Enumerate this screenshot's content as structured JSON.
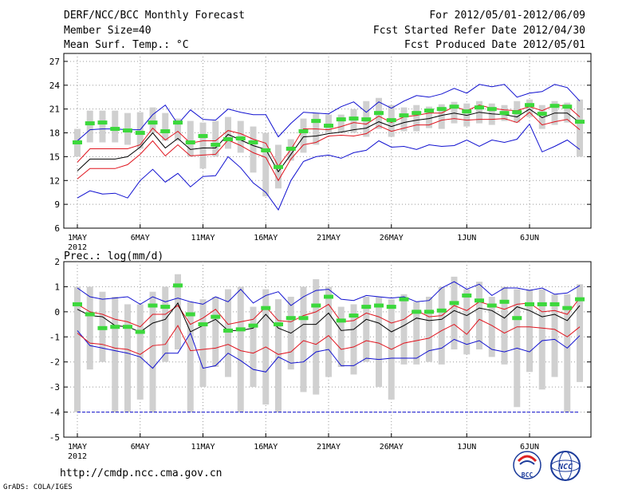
{
  "header": {
    "title": "DERF/NCC/BCC Monthly Forecast",
    "member_size": "Member Size=40",
    "variable": "Mean Surf. Temp.: °C",
    "period": "For 2012/05/01-2012/06/09",
    "start_date": "Fcst Started Refer Date 2012/04/30",
    "produced_date": "Fcst Produced Date 2012/05/01"
  },
  "footer": {
    "url": "http://cmdp.ncc.cma.gov.cn",
    "grads_credit": "GrADS: COLA/IGES",
    "logo_bcc": "BCC",
    "logo_ncc": "NCC"
  },
  "colors": {
    "box": "#d0d0d0",
    "ensemble_mean": "#000000",
    "spread": "#e0141e",
    "extreme": "#1010d0",
    "observed": "#3cd83c",
    "threshold": "#1010d0"
  },
  "chart_data": [
    {
      "id": "temperature",
      "type": "line",
      "ylabel": "Mean Surf. Temp.: °C",
      "ylim": [
        6,
        28
      ],
      "yticks": [
        6,
        9,
        12,
        15,
        18,
        21,
        24,
        27
      ],
      "xlim": [
        0,
        40
      ],
      "xtick_positions": [
        0,
        5,
        10,
        15,
        20,
        25,
        31,
        36
      ],
      "xtick_labels": [
        "1MAY",
        "6MAY",
        "11MAY",
        "16MAY",
        "21MAY",
        "26MAY",
        "1JUN",
        "6JUN"
      ],
      "xlabel_year": "2012",
      "grid": true,
      "series": [
        {
          "name": "max",
          "role": "extreme",
          "values": [
            9.8,
            10.7,
            10.3,
            10.4,
            9.8,
            12.0,
            13.4,
            11.8,
            12.9,
            11.2,
            12.5,
            12.6,
            15.0,
            13.6,
            11.7,
            10.5,
            8.3,
            12.0,
            14.4,
            15.0,
            15.2,
            14.8,
            15.5,
            15.8,
            17.0,
            16.2,
            16.3,
            15.9,
            16.5,
            16.3,
            16.4,
            17.1,
            16.3,
            17.1,
            16.8,
            17.2,
            19.1,
            15.6,
            16.3,
            17.1,
            15.9
          ]
        },
        {
          "name": "min",
          "role": "extreme",
          "values": [
            17.0,
            18.4,
            18.5,
            18.5,
            18.4,
            18.4,
            20.3,
            21.5,
            19.1,
            20.9,
            19.7,
            19.6,
            21.0,
            20.6,
            20.3,
            20.3,
            17.5,
            19.2,
            20.6,
            20.5,
            20.4,
            21.3,
            21.9,
            20.6,
            21.9,
            21.1,
            22.0,
            22.7,
            22.5,
            22.9,
            23.6,
            23.0,
            24.1,
            23.8,
            24.1,
            22.5,
            23.0,
            23.2,
            24.1,
            23.7,
            22.0
          ]
        },
        {
          "name": "upper",
          "role": "spread",
          "values": [
            14.3,
            16.0,
            16.0,
            16.0,
            16.0,
            16.5,
            18.6,
            17.1,
            18.2,
            16.7,
            17.0,
            17.0,
            18.3,
            17.9,
            17.2,
            16.7,
            13.8,
            15.9,
            18.5,
            18.5,
            18.4,
            18.8,
            19.3,
            19.1,
            20.1,
            19.3,
            20.0,
            20.2,
            20.5,
            20.5,
            21.3,
            20.8,
            21.5,
            21.1,
            20.9,
            20.8,
            21.3,
            20.8,
            21.5,
            21.4,
            20.0
          ]
        },
        {
          "name": "lower",
          "role": "spread",
          "values": [
            12.2,
            13.5,
            13.5,
            13.5,
            14.0,
            15.3,
            17.0,
            15.1,
            16.5,
            15.1,
            15.2,
            15.3,
            17.1,
            16.4,
            15.5,
            14.9,
            12.0,
            14.7,
            16.5,
            16.8,
            17.6,
            17.7,
            17.6,
            17.9,
            18.9,
            18.2,
            18.6,
            19.0,
            19.0,
            19.6,
            19.8,
            19.6,
            19.7,
            19.7,
            19.8,
            19.3,
            20.6,
            19.0,
            19.4,
            19.7,
            18.4
          ]
        },
        {
          "name": "ensemble mean",
          "role": "ensemble_mean",
          "values": [
            13.2,
            14.7,
            14.7,
            14.7,
            15.0,
            16.2,
            18.0,
            16.1,
            17.3,
            15.9,
            16.1,
            16.1,
            17.8,
            17.1,
            16.4,
            15.9,
            13.1,
            15.3,
            17.5,
            17.6,
            17.9,
            18.1,
            18.4,
            18.6,
            19.4,
            18.8,
            19.3,
            19.6,
            19.8,
            20.2,
            20.5,
            20.2,
            20.6,
            20.4,
            20.3,
            20.0,
            21.0,
            19.9,
            20.5,
            20.5,
            19.3
          ]
        },
        {
          "name": "obs",
          "role": "observed",
          "values": [
            16.8,
            19.2,
            19.3,
            18.5,
            18.3,
            18.0,
            19.3,
            18.2,
            19.3,
            16.8,
            17.6,
            16.5,
            17.2,
            17.3,
            16.8,
            15.8,
            13.7,
            16.0,
            18.2,
            19.5,
            18.9,
            19.7,
            19.8,
            19.7,
            20.5,
            19.6,
            20.2,
            20.5,
            20.8,
            21.0,
            21.3,
            20.7,
            21.2,
            21.0,
            20.5,
            20.6,
            21.5,
            20.4,
            21.4,
            21.3,
            19.4
          ]
        }
      ],
      "boxes_low": [
        15.0,
        16.8,
        16.8,
        16.8,
        16.5,
        16.0,
        18.0,
        17.0,
        17.0,
        15.0,
        13.5,
        15.0,
        16.0,
        15.5,
        13.0,
        10.0,
        11.0,
        14.5,
        15.5,
        16.5,
        18.0,
        18.0,
        18.0,
        17.5,
        18.5,
        17.5,
        18.2,
        18.2,
        18.6,
        18.5,
        19.2,
        18.8,
        19.2,
        19.0,
        19.5,
        19.3,
        20.0,
        18.5,
        19.0,
        19.3,
        15.0
      ],
      "boxes_high": [
        18.5,
        20.8,
        20.8,
        20.8,
        20.5,
        20.6,
        21.2,
        20.5,
        19.8,
        19.5,
        19.3,
        19.5,
        20.0,
        19.5,
        18.8,
        18.0,
        16.5,
        17.2,
        19.8,
        20.5,
        20.3,
        20.3,
        21.0,
        22.0,
        22.4,
        21.5,
        21.2,
        21.5,
        21.3,
        21.6,
        21.9,
        21.7,
        22.0,
        21.7,
        21.5,
        22.0,
        22.2,
        21.5,
        22.0,
        21.8,
        22.2
      ]
    },
    {
      "id": "precipitation",
      "type": "line",
      "ylabel": "Prec.: log(mm/d)",
      "ylim": [
        -5,
        2
      ],
      "yticks": [
        -5,
        -4,
        -3,
        -2,
        -1,
        0,
        1,
        2
      ],
      "xlim": [
        0,
        40
      ],
      "xtick_positions": [
        0,
        5,
        10,
        15,
        20,
        25,
        31,
        36
      ],
      "xtick_labels": [
        "1MAY",
        "6MAY",
        "11MAY",
        "16MAY",
        "21MAY",
        "26MAY",
        "1JUN",
        "6JUN"
      ],
      "xlabel_year": "2012",
      "grid": true,
      "threshold": -4.0,
      "series": [
        {
          "name": "max",
          "role": "extreme",
          "values": [
            0.95,
            0.6,
            0.5,
            0.55,
            0.6,
            0.3,
            0.6,
            0.4,
            0.55,
            0.4,
            0.3,
            0.6,
            0.4,
            0.9,
            0.35,
            0.65,
            0.8,
            0.25,
            0.6,
            0.85,
            0.9,
            0.5,
            0.45,
            0.65,
            0.6,
            0.55,
            0.6,
            0.4,
            0.45,
            0.95,
            1.2,
            0.9,
            1.1,
            0.65,
            0.95,
            0.95,
            0.85,
            0.95,
            0.7,
            0.75,
            1.05
          ]
        },
        {
          "name": "upper",
          "role": "spread",
          "values": [
            0.3,
            0.0,
            -0.1,
            -0.3,
            -0.4,
            -0.6,
            -0.1,
            -0.1,
            0.25,
            -0.5,
            -0.25,
            0.1,
            -0.5,
            -0.4,
            -0.3,
            0.2,
            -0.35,
            -0.4,
            -0.15,
            0.0,
            0.3,
            -0.4,
            -0.35,
            -0.05,
            -0.2,
            -0.45,
            -0.3,
            0.05,
            -0.2,
            -0.15,
            0.25,
            0.05,
            0.4,
            0.25,
            0.1,
            0.3,
            0.35,
            0.0,
            0.05,
            -0.1,
            0.55
          ]
        },
        {
          "name": "ensemble mean",
          "role": "ensemble_mean",
          "values": [
            0.1,
            -0.15,
            -0.2,
            -0.55,
            -0.6,
            -0.8,
            -0.45,
            -0.3,
            0.35,
            -0.8,
            -0.55,
            -0.3,
            -0.75,
            -0.75,
            -0.65,
            -0.1,
            -0.65,
            -0.85,
            -0.5,
            -0.5,
            -0.05,
            -0.75,
            -0.7,
            -0.3,
            -0.45,
            -0.8,
            -0.55,
            -0.25,
            -0.35,
            -0.3,
            0.05,
            -0.15,
            0.15,
            0.05,
            -0.25,
            0.2,
            0.05,
            -0.2,
            -0.1,
            -0.35,
            0.25
          ]
        },
        {
          "name": "lower",
          "role": "spread",
          "values": [
            -0.85,
            -1.25,
            -1.3,
            -1.45,
            -1.5,
            -1.7,
            -1.35,
            -1.3,
            -0.55,
            -1.55,
            -1.5,
            -1.45,
            -1.3,
            -1.55,
            -1.65,
            -1.4,
            -1.7,
            -1.6,
            -1.15,
            -1.3,
            -0.95,
            -1.5,
            -1.4,
            -1.15,
            -1.25,
            -1.5,
            -1.25,
            -1.15,
            -1.05,
            -0.75,
            -0.5,
            -0.9,
            -0.3,
            -0.55,
            -0.85,
            -0.6,
            -0.6,
            -0.65,
            -0.7,
            -1.0,
            -0.6
          ]
        },
        {
          "name": "min",
          "role": "extreme",
          "values": [
            -0.75,
            -1.35,
            -1.45,
            -1.55,
            -1.65,
            -1.8,
            -2.25,
            -1.65,
            -1.65,
            -0.85,
            -2.25,
            -2.15,
            -1.65,
            -1.95,
            -2.3,
            -2.4,
            -1.8,
            -2.05,
            -2.0,
            -1.6,
            -1.5,
            -2.15,
            -2.15,
            -1.85,
            -1.9,
            -1.85,
            -1.85,
            -1.85,
            -1.55,
            -1.45,
            -1.1,
            -1.3,
            -1.15,
            -1.5,
            -1.6,
            -1.45,
            -1.6,
            -1.15,
            -1.1,
            -1.45,
            -0.95
          ]
        },
        {
          "name": "obs",
          "role": "observed",
          "values": [
            0.3,
            -0.1,
            -0.65,
            -0.6,
            -0.6,
            -0.8,
            0.25,
            0.2,
            1.05,
            -0.1,
            -0.5,
            -0.2,
            -0.75,
            -0.7,
            -0.55,
            0.15,
            -0.5,
            -0.25,
            -0.25,
            0.25,
            0.6,
            -0.35,
            -0.15,
            0.2,
            0.25,
            0.2,
            0.5,
            0.0,
            0.0,
            0.05,
            0.35,
            0.65,
            0.45,
            0.25,
            0.4,
            -0.25,
            0.3,
            0.3,
            0.3,
            0.15,
            0.5
          ]
        }
      ],
      "boxes_low": [
        -4.0,
        -2.3,
        -2.0,
        -4.0,
        -4.0,
        -3.5,
        -4.0,
        -2.0,
        -1.5,
        -4.0,
        -3.0,
        -2.2,
        -2.6,
        -4.0,
        -3.0,
        -3.7,
        -4.0,
        -2.3,
        -3.2,
        -3.3,
        -2.6,
        -2.2,
        -2.5,
        -2.0,
        -3.0,
        -3.5,
        -2.1,
        -2.1,
        -2.0,
        -2.1,
        -1.5,
        -1.7,
        -1.5,
        -1.8,
        -2.1,
        -3.8,
        -2.4,
        -3.1,
        -2.6,
        -4.0,
        -2.8
      ],
      "boxes_high": [
        1.0,
        1.0,
        0.8,
        0.6,
        0.3,
        0.3,
        0.8,
        1.0,
        1.5,
        0.4,
        0.5,
        0.6,
        0.9,
        1.0,
        0.2,
        0.9,
        0.5,
        0.6,
        1.0,
        1.3,
        1.0,
        0.2,
        0.3,
        0.6,
        0.6,
        0.5,
        0.7,
        0.4,
        0.6,
        1.0,
        1.4,
        0.9,
        1.2,
        0.6,
        1.0,
        0.9,
        0.9,
        0.9,
        0.7,
        0.7,
        1.1
      ]
    }
  ]
}
